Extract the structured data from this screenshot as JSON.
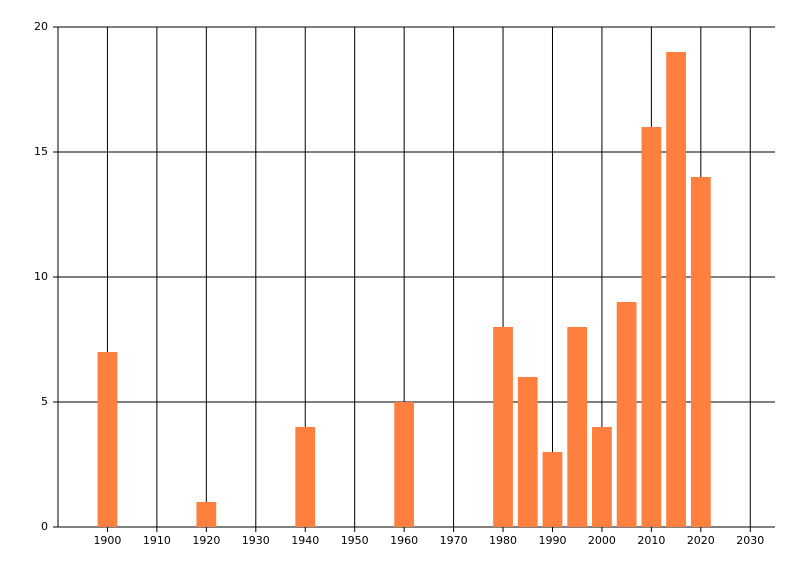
{
  "chart_data": {
    "type": "bar",
    "x": [
      1900,
      1920,
      1940,
      1960,
      1980,
      1985,
      1990,
      1995,
      2000,
      2005,
      2010,
      2015,
      2020
    ],
    "values": [
      7,
      1,
      4,
      5,
      8,
      6,
      3,
      8,
      4,
      9,
      16,
      19,
      14
    ],
    "color": "#ff7f3f",
    "xlim": [
      1890,
      2035
    ],
    "xticks": [
      1900,
      1910,
      1920,
      1930,
      1940,
      1950,
      1960,
      1970,
      1980,
      1990,
      2000,
      2010,
      2020,
      2030
    ],
    "ylim": [
      0,
      20
    ],
    "yticks": [
      0,
      5,
      10,
      15,
      20
    ],
    "grid": true
  }
}
